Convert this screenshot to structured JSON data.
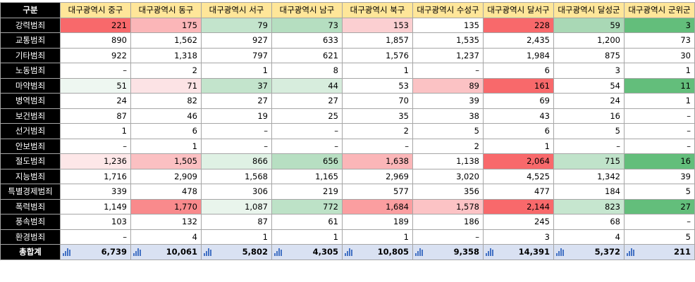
{
  "table": {
    "corner": "구분",
    "columns": [
      "대구광역시 중구",
      "대구광역시 동구",
      "대구광역시 서구",
      "대구광역시 남구",
      "대구광역시 북구",
      "대구광역시 수성구",
      "대구광역시 달서구",
      "대구광역시 달성군",
      "대구광역시 군위군"
    ],
    "rows": [
      {
        "label": "강력범죄",
        "cells": [
          "221",
          "175",
          "79",
          "73",
          "153",
          "135",
          "228",
          "59",
          "3"
        ],
        "colors": [
          "#f8696b",
          "#fbb6b8",
          "#c3e4cc",
          "#b5dec0",
          "#fbcfd1",
          "#ffffff",
          "#f8696b",
          "#a9d8b5",
          "#63be7b"
        ]
      },
      {
        "label": "교통범죄",
        "cells": [
          "890",
          "1,562",
          "927",
          "633",
          "1,857",
          "1,535",
          "2,435",
          "1,200",
          "73"
        ],
        "colors": [
          "",
          "",
          "",
          "",
          "",
          "",
          "",
          "",
          ""
        ]
      },
      {
        "label": "기타범죄",
        "cells": [
          "922",
          "1,318",
          "797",
          "621",
          "1,576",
          "1,237",
          "1,984",
          "875",
          "30"
        ],
        "colors": [
          "",
          "",
          "",
          "",
          "",
          "",
          "",
          "",
          ""
        ]
      },
      {
        "label": "노동범죄",
        "cells": [
          "–",
          "2",
          "1",
          "8",
          "1",
          "–",
          "6",
          "3",
          "1"
        ],
        "colors": [
          "",
          "",
          "",
          "",
          "",
          "",
          "",
          "",
          ""
        ]
      },
      {
        "label": "마약범죄",
        "cells": [
          "51",
          "71",
          "37",
          "44",
          "53",
          "89",
          "161",
          "54",
          "11"
        ],
        "colors": [
          "#eef7f1",
          "#fce3e5",
          "#c3e4cc",
          "#d7eddd",
          "#ffffff",
          "#fbc2c4",
          "#f8696b",
          "#ffffff",
          "#63be7b"
        ]
      },
      {
        "label": "병역범죄",
        "cells": [
          "24",
          "82",
          "27",
          "27",
          "70",
          "39",
          "69",
          "24",
          "1"
        ],
        "colors": [
          "",
          "",
          "",
          "",
          "",
          "",
          "",
          "",
          ""
        ]
      },
      {
        "label": "보건범죄",
        "cells": [
          "87",
          "46",
          "19",
          "25",
          "35",
          "38",
          "43",
          "16",
          "–"
        ],
        "colors": [
          "",
          "",
          "",
          "",
          "",
          "",
          "",
          "",
          ""
        ]
      },
      {
        "label": "선거범죄",
        "cells": [
          "1",
          "6",
          "–",
          "–",
          "2",
          "5",
          "6",
          "5",
          "–"
        ],
        "colors": [
          "",
          "",
          "",
          "",
          "",
          "",
          "",
          "",
          ""
        ]
      },
      {
        "label": "안보범죄",
        "cells": [
          "–",
          "1",
          "–",
          "–",
          "–",
          "2",
          "1",
          "–",
          "–"
        ],
        "colors": [
          "",
          "",
          "",
          "",
          "",
          "",
          "",
          "",
          ""
        ]
      },
      {
        "label": "절도범죄",
        "cells": [
          "1,236",
          "1,505",
          "866",
          "656",
          "1,638",
          "1,138",
          "2,064",
          "715",
          "16"
        ],
        "colors": [
          "#fde7e8",
          "#fbc0c2",
          "#dff1e4",
          "#b7dfc2",
          "#fbb6b8",
          "#ffffff",
          "#f8696b",
          "#c0e3ca",
          "#63be7b"
        ]
      },
      {
        "label": "지능범죄",
        "cells": [
          "1,716",
          "2,909",
          "1,568",
          "1,165",
          "2,969",
          "3,020",
          "4,525",
          "1,342",
          "39"
        ],
        "colors": [
          "",
          "",
          "",
          "",
          "",
          "",
          "",
          "",
          ""
        ]
      },
      {
        "label": "특별경제범죄",
        "cells": [
          "339",
          "478",
          "306",
          "219",
          "577",
          "356",
          "477",
          "184",
          "5"
        ],
        "colors": [
          "",
          "",
          "",
          "",
          "",
          "",
          "",
          "",
          ""
        ]
      },
      {
        "label": "폭력범죄",
        "cells": [
          "1,149",
          "1,770",
          "1,087",
          "772",
          "1,684",
          "1,578",
          "2,144",
          "823",
          "27"
        ],
        "colors": [
          "#ffffff",
          "#f98a8c",
          "#e9f5ec",
          "#bde2c7",
          "#fb9ea0",
          "#fcc3c5",
          "#f8696b",
          "#c6e6cf",
          "#63be7b"
        ]
      },
      {
        "label": "풍속범죄",
        "cells": [
          "103",
          "132",
          "87",
          "61",
          "189",
          "186",
          "245",
          "68",
          "–"
        ],
        "colors": [
          "",
          "",
          "",
          "",
          "",
          "",
          "",
          "",
          ""
        ]
      },
      {
        "label": "환경범죄",
        "cells": [
          "–",
          "4",
          "1",
          "1",
          "1",
          "–",
          "3",
          "4",
          "5"
        ],
        "colors": [
          "",
          "",
          "",
          "",
          "",
          "",
          "",
          "",
          ""
        ]
      }
    ],
    "total": {
      "label": "총합계",
      "cells": [
        "6,739",
        "10,061",
        "5,802",
        "4,305",
        "10,805",
        "9,358",
        "14,391",
        "5,372",
        "211"
      ]
    }
  }
}
